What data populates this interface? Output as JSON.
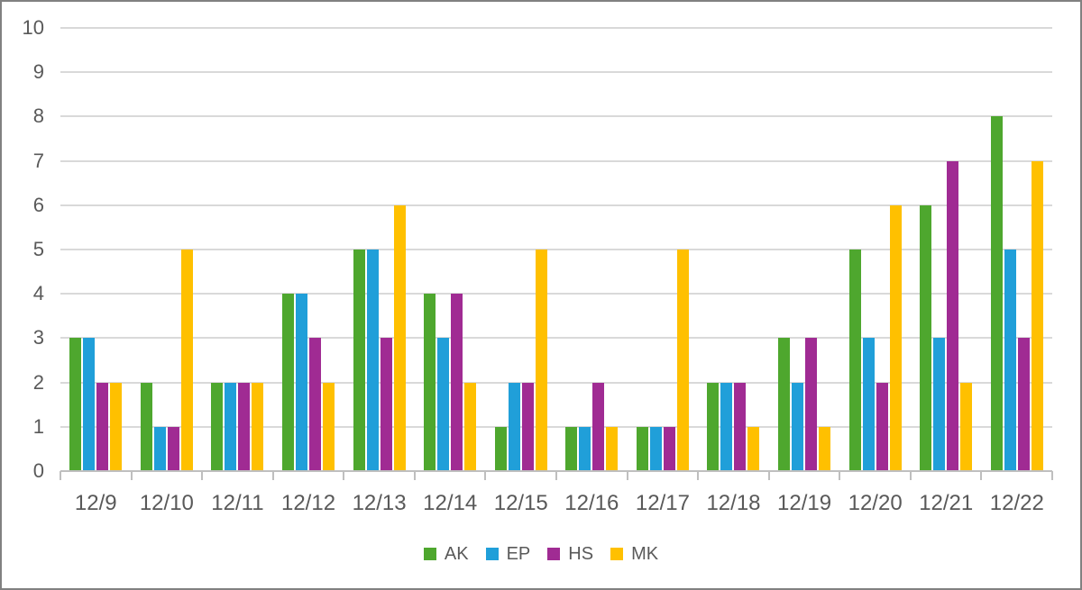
{
  "chart_data": {
    "type": "bar",
    "title": "",
    "xlabel": "",
    "ylabel": "",
    "categories": [
      "12/9",
      "12/10",
      "12/11",
      "12/12",
      "12/13",
      "12/14",
      "12/15",
      "12/16",
      "12/17",
      "12/18",
      "12/19",
      "12/20",
      "12/21",
      "12/22"
    ],
    "series": [
      {
        "name": "AK",
        "color": "#4ea72e",
        "values": [
          3,
          2,
          2,
          4,
          5,
          4,
          1,
          1,
          1,
          2,
          3,
          5,
          6,
          8
        ]
      },
      {
        "name": "EP",
        "color": "#209fd9",
        "values": [
          3,
          1,
          2,
          4,
          5,
          3,
          2,
          1,
          1,
          2,
          2,
          3,
          3,
          5
        ]
      },
      {
        "name": "HS",
        "color": "#a02b93",
        "values": [
          2,
          1,
          2,
          3,
          3,
          4,
          2,
          2,
          1,
          2,
          3,
          2,
          7,
          3
        ]
      },
      {
        "name": "MK",
        "color": "#ffc000",
        "values": [
          2,
          5,
          2,
          2,
          6,
          2,
          5,
          1,
          5,
          1,
          1,
          6,
          2,
          7
        ]
      }
    ],
    "ylim": [
      0,
      10
    ],
    "ytick_step": 1,
    "yticks": [
      "0",
      "1",
      "2",
      "3",
      "4",
      "5",
      "6",
      "7",
      "8",
      "9",
      "10"
    ],
    "grid": true,
    "legend_position": "bottom",
    "colors": {
      "gridline": "#d9d9d9",
      "axis_line": "#bfbfbf",
      "axis_text": "#595959",
      "frame_border": "#818181",
      "background": "#ffffff"
    }
  }
}
